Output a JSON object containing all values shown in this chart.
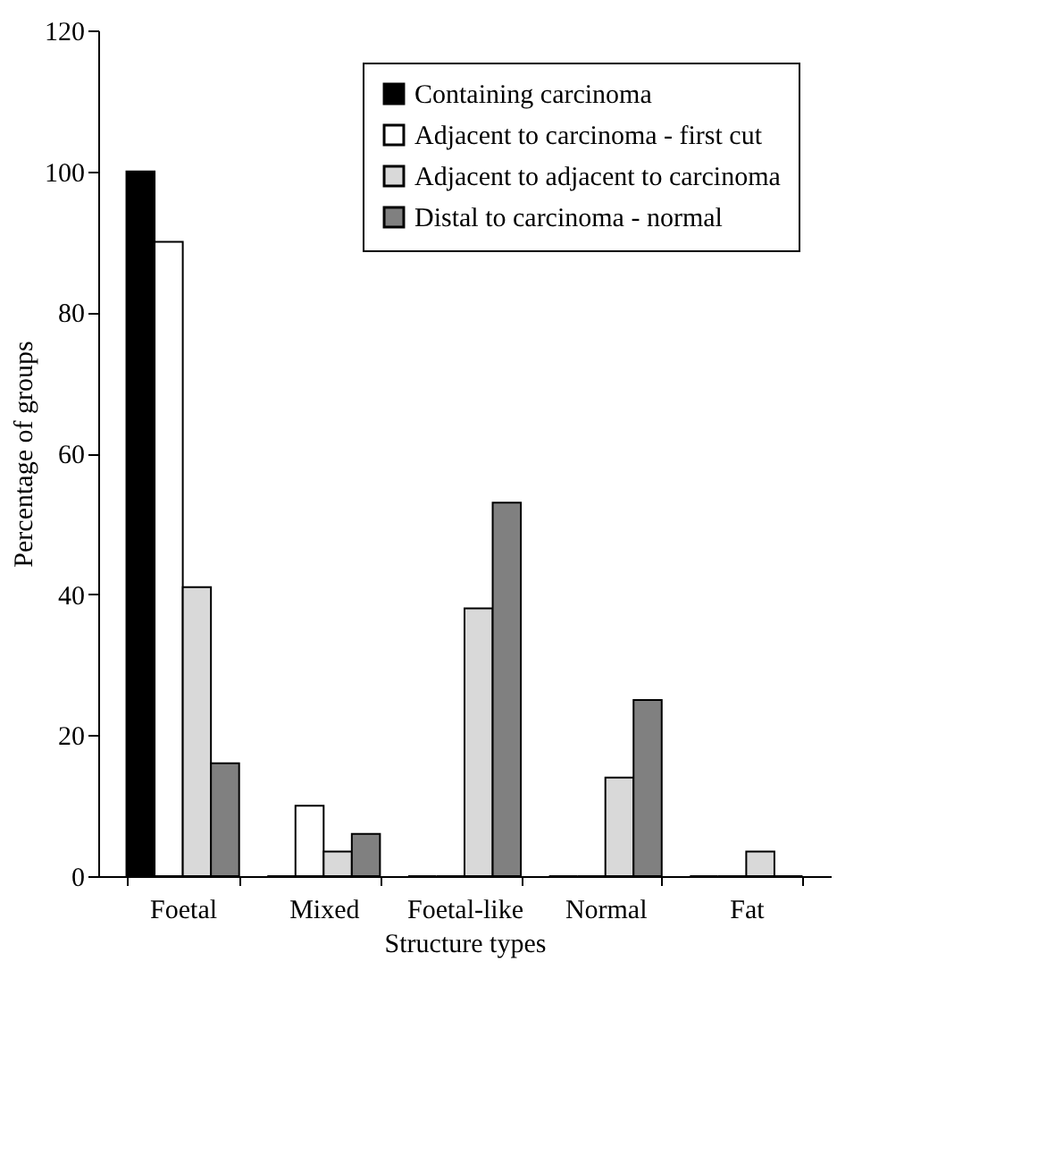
{
  "chart_data": {
    "type": "bar",
    "xlabel": "Structure types",
    "ylabel": "Percentage of groups",
    "categories": [
      "Foetal",
      "Mixed",
      "Foetal-like",
      "Normal",
      "Fat"
    ],
    "series": [
      {
        "name": "Containing carcinoma",
        "color": "#000000",
        "values": [
          100,
          0,
          0,
          0,
          0
        ]
      },
      {
        "name": "Adjacent to carcinoma - first cut",
        "color": "#ffffff",
        "values": [
          90,
          10,
          0,
          0,
          0
        ]
      },
      {
        "name": "Adjacent to adjacent to carcinoma",
        "color": "#d9d9d9",
        "values": [
          41,
          3.5,
          38,
          14,
          3.5
        ]
      },
      {
        "name": "Distal to carcinoma - normal",
        "color": "#808080",
        "values": [
          16,
          6,
          53,
          25,
          0
        ]
      }
    ],
    "ylim": [
      0,
      120
    ],
    "yticks": [
      0,
      20,
      40,
      60,
      80,
      100,
      120
    ],
    "grid": false,
    "legend": "top right"
  }
}
